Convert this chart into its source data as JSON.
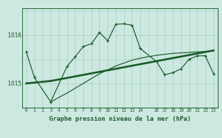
{
  "xlabel": "Graphe pression niveau de la mer (hPa)",
  "background_color": "#cce8e0",
  "grid_color": "#aad4c8",
  "line_color": "#1a5c2a",
  "ylim": [
    1014.5,
    1016.55
  ],
  "yticks": [
    1015.0,
    1016.0
  ],
  "xlim": [
    -0.5,
    23.5
  ],
  "main_x": [
    0,
    1,
    3,
    5,
    6,
    7,
    8,
    9,
    10,
    11,
    12,
    13,
    14,
    16,
    17,
    18,
    19,
    20,
    21,
    22,
    23
  ],
  "main_y": [
    1015.65,
    1015.12,
    1014.62,
    1015.35,
    1015.55,
    1015.76,
    1015.82,
    1016.05,
    1015.88,
    1016.22,
    1016.23,
    1016.2,
    1015.72,
    1015.45,
    1015.18,
    1015.22,
    1015.3,
    1015.5,
    1015.57,
    1015.57,
    1015.2
  ],
  "trend_x": [
    0,
    3,
    23
  ],
  "trend_y": [
    1015.0,
    1015.05,
    1015.68
  ],
  "low_x": [
    3,
    5,
    6,
    7,
    8,
    9,
    10,
    11,
    12,
    13,
    14,
    16,
    17,
    18,
    19,
    20,
    21,
    22,
    23
  ],
  "low_y": [
    1014.62,
    1014.8,
    1014.9,
    1015.0,
    1015.1,
    1015.2,
    1015.28,
    1015.36,
    1015.42,
    1015.48,
    1015.52,
    1015.58,
    1015.6,
    1015.62,
    1015.63,
    1015.64,
    1015.65,
    1015.66,
    1015.67
  ],
  "xtick_positions": [
    0,
    1,
    2,
    3,
    4,
    5,
    6,
    7,
    8,
    9,
    10,
    11,
    12,
    13,
    14,
    16,
    17,
    18,
    19,
    20,
    21,
    22,
    23
  ],
  "xtick_labels": [
    "0",
    "1",
    "2",
    "3",
    "4",
    "5",
    "6",
    "7",
    "8",
    "9",
    "10",
    "11",
    "12",
    "13",
    "14",
    "16",
    "17",
    "18",
    "19",
    "20",
    "21",
    "22",
    "23"
  ]
}
